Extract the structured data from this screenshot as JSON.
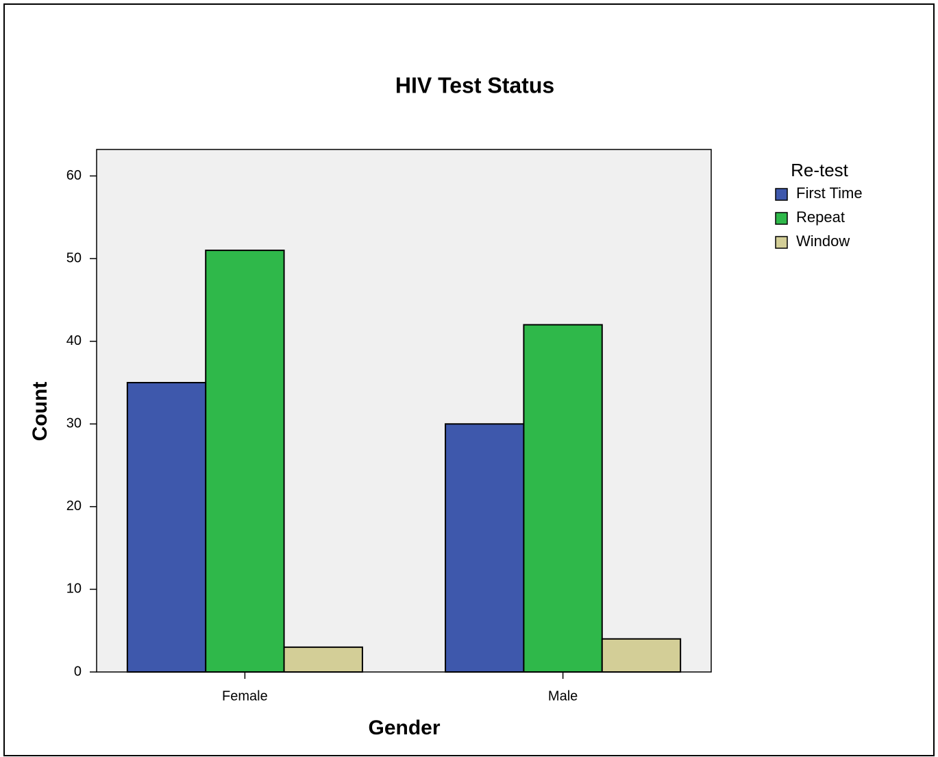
{
  "chart_data": {
    "type": "bar",
    "title": "HIV Test Status",
    "x_label": "Gender",
    "y_label": "Count",
    "categories": [
      "Female",
      "Male"
    ],
    "legend_title": "Re-test",
    "series": [
      {
        "name": "First Time",
        "color": "#3e58ac",
        "values": [
          35,
          30
        ]
      },
      {
        "name": "Repeat",
        "color": "#2fb84a",
        "values": [
          51,
          42
        ]
      },
      {
        "name": "Window",
        "color": "#d3ce97",
        "values": [
          3,
          4
        ]
      }
    ],
    "ylim": [
      0,
      63.2
    ],
    "yticks": [
      0,
      10,
      20,
      30,
      40,
      50,
      60
    ],
    "legend": "right"
  }
}
